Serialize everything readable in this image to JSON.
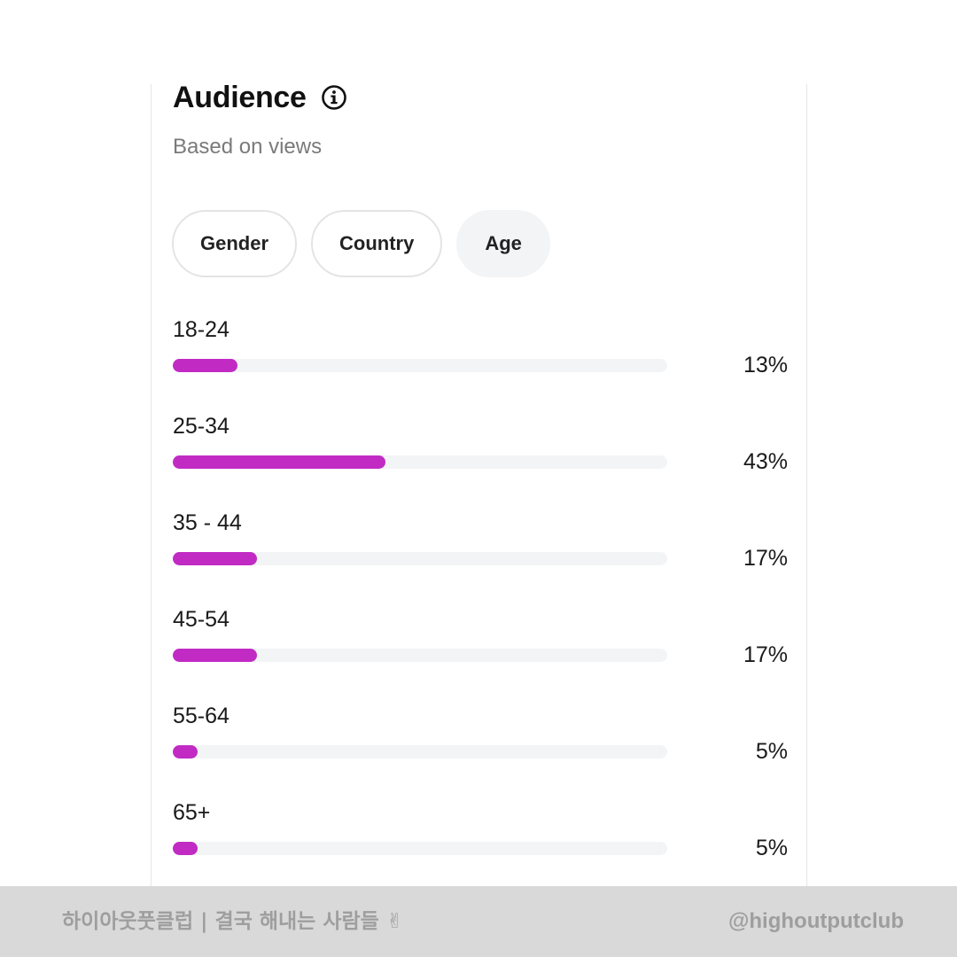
{
  "header": {
    "title": "Audience",
    "info_icon": "info-circle-icon",
    "subtitle": "Based on views"
  },
  "tabs": [
    {
      "label": "Gender",
      "active": false
    },
    {
      "label": "Country",
      "active": false
    },
    {
      "label": "Age",
      "active": true
    }
  ],
  "age_breakdown": [
    {
      "label": "18-24",
      "percent_text": "13%",
      "value": 13
    },
    {
      "label": "25-34",
      "percent_text": "43%",
      "value": 43
    },
    {
      "label": "35 - 44",
      "percent_text": "17%",
      "value": 17
    },
    {
      "label": "45-54",
      "percent_text": "17%",
      "value": 17
    },
    {
      "label": "55-64",
      "percent_text": "5%",
      "value": 5
    },
    {
      "label": "65+",
      "percent_text": "5%",
      "value": 5
    }
  ],
  "colors": {
    "bar_fill": "#c12bc4",
    "bar_track": "#f3f4f6",
    "active_tab_bg": "#f3f4f6",
    "footer_bg": "#d9d9d9"
  },
  "footer": {
    "left_text": "하이아웃풋클럽 | 결국 해내는 사람들 ✌",
    "right_text": "@highoutputclub"
  }
}
